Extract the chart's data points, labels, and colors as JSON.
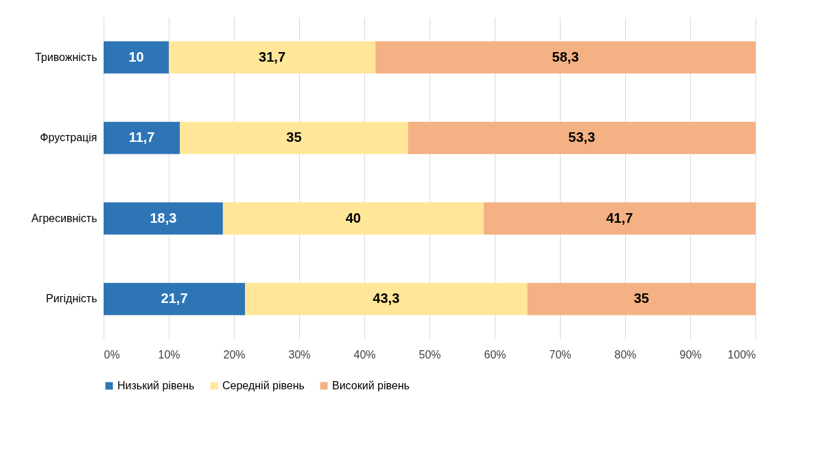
{
  "chart_data": {
    "type": "bar",
    "orientation": "horizontal",
    "stacked": true,
    "categories": [
      "Тривожність",
      "Фрустрація",
      "Агресивність",
      "Ригідність"
    ],
    "series": [
      {
        "name": "Низький рівень",
        "color": "#2e75b6",
        "values": [
          10,
          11.7,
          18.3,
          21.7
        ],
        "value_labels": [
          "10",
          "11,7",
          "18,3",
          "21,7"
        ]
      },
      {
        "name": "Середній рівень",
        "color": "#ffe699",
        "values": [
          31.7,
          35,
          40,
          43.3
        ],
        "value_labels": [
          "31,7",
          "35",
          "40",
          "43,3"
        ]
      },
      {
        "name": "Високий рівень",
        "color": "#f4b183",
        "values": [
          58.3,
          53.3,
          41.7,
          35
        ],
        "value_labels": [
          "58,3",
          "53,3",
          "41,7",
          "35"
        ]
      }
    ],
    "xlim": [
      0,
      100
    ],
    "xticks": [
      {
        "value": 0,
        "label": "0%"
      },
      {
        "value": 10,
        "label": "10%"
      },
      {
        "value": 20,
        "label": "20%"
      },
      {
        "value": 30,
        "label": "30%"
      },
      {
        "value": 40,
        "label": "40%"
      },
      {
        "value": 50,
        "label": "50%"
      },
      {
        "value": 60,
        "label": "60%"
      },
      {
        "value": 70,
        "label": "70%"
      },
      {
        "value": 80,
        "label": "80%"
      },
      {
        "value": 90,
        "label": "90%"
      },
      {
        "value": 100,
        "label": "100%"
      }
    ],
    "grid": "x",
    "legend": "bottom"
  }
}
